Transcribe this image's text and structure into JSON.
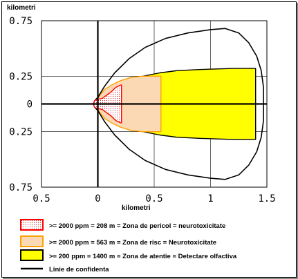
{
  "chart_data": {
    "type": "area",
    "xlabel": "kilometri",
    "ylabel": "kilometri",
    "xlim": [
      -0.5,
      1.5
    ],
    "ylim": [
      -0.75,
      0.75
    ],
    "x_ticks": [
      {
        "value": -0.5,
        "label": "0.5"
      },
      {
        "value": 0,
        "label": "0"
      },
      {
        "value": 0.5,
        "label": "0.5"
      },
      {
        "value": 1,
        "label": "1"
      },
      {
        "value": 1.5,
        "label": "1.5"
      }
    ],
    "y_ticks": [
      {
        "value": 0.75,
        "label": "0.75"
      },
      {
        "value": 0.25,
        "label": "0.25"
      },
      {
        "value": 0,
        "label": "0"
      },
      {
        "value": -0.25,
        "label": "0.25"
      },
      {
        "value": -0.75,
        "label": "0.75"
      }
    ],
    "grid": true,
    "series": [
      {
        "name": ">= 200 ppm = 1400 m = Zona de atentie = Detectare olfactiva",
        "fill": "#ffff00",
        "stroke": "#000000",
        "range_m": 1400,
        "points": [
          [
            -0.03,
            0
          ],
          [
            -0.02,
            0.04
          ],
          [
            0,
            0.06
          ],
          [
            0.05,
            0.1
          ],
          [
            0.1,
            0.13
          ],
          [
            0.2,
            0.18
          ],
          [
            0.3,
            0.22
          ],
          [
            0.4,
            0.25
          ],
          [
            0.55,
            0.28
          ],
          [
            0.7,
            0.3
          ],
          [
            0.9,
            0.31
          ],
          [
            1.2,
            0.32
          ],
          [
            1.4,
            0.32
          ],
          [
            1.4,
            -0.32
          ],
          [
            1.2,
            -0.32
          ],
          [
            0.9,
            -0.31
          ],
          [
            0.7,
            -0.3
          ],
          [
            0.55,
            -0.28
          ],
          [
            0.4,
            -0.25
          ],
          [
            0.3,
            -0.22
          ],
          [
            0.2,
            -0.18
          ],
          [
            0.1,
            -0.13
          ],
          [
            0.05,
            -0.1
          ],
          [
            0,
            -0.06
          ],
          [
            -0.02,
            -0.04
          ]
        ]
      },
      {
        "name": ">= 2000 ppm = 563 m = Zona de risc = Neurotoxicitate",
        "fill": "#fad9b4",
        "stroke": "#ffa000",
        "range_m": 563,
        "points": [
          [
            -0.02,
            0
          ],
          [
            -0.01,
            0.03
          ],
          [
            0.02,
            0.08
          ],
          [
            0.06,
            0.13
          ],
          [
            0.12,
            0.17
          ],
          [
            0.2,
            0.21
          ],
          [
            0.3,
            0.24
          ],
          [
            0.4,
            0.25
          ],
          [
            0.47,
            0.25
          ],
          [
            0.56,
            0.25
          ],
          [
            0.56,
            -0.25
          ],
          [
            0.47,
            -0.25
          ],
          [
            0.4,
            -0.25
          ],
          [
            0.3,
            -0.24
          ],
          [
            0.2,
            -0.21
          ],
          [
            0.12,
            -0.17
          ],
          [
            0.06,
            -0.13
          ],
          [
            0.02,
            -0.08
          ],
          [
            -0.01,
            -0.03
          ]
        ]
      },
      {
        "name": ">= 2000 ppm = 208 m = Zona de pericol = neurotoxicitate",
        "fill": "#ffffff",
        "pattern": "dots",
        "stroke": "#ff0000",
        "range_m": 208,
        "points": [
          [
            -0.04,
            0
          ],
          [
            -0.03,
            0.03
          ],
          [
            -0.01,
            0.04
          ],
          [
            0.04,
            0.05
          ],
          [
            0.08,
            0.08
          ],
          [
            0.12,
            0.11
          ],
          [
            0.16,
            0.15
          ],
          [
            0.2,
            0.17
          ],
          [
            0.21,
            0.17
          ],
          [
            0.21,
            -0.17
          ],
          [
            0.2,
            -0.17
          ],
          [
            0.16,
            -0.15
          ],
          [
            0.12,
            -0.11
          ],
          [
            0.08,
            -0.08
          ],
          [
            0.04,
            -0.05
          ],
          [
            -0.01,
            -0.04
          ],
          [
            -0.03,
            -0.03
          ]
        ]
      },
      {
        "name": "Linie de confidenta",
        "fill": "none",
        "stroke": "#000000",
        "points": [
          [
            0,
            0.06
          ],
          [
            0.06,
            0.16
          ],
          [
            0.15,
            0.28
          ],
          [
            0.28,
            0.41
          ],
          [
            0.42,
            0.51
          ],
          [
            0.6,
            0.59
          ],
          [
            0.8,
            0.64
          ],
          [
            1.0,
            0.67
          ],
          [
            1.13,
            0.68
          ],
          [
            1.25,
            0.64
          ],
          [
            1.34,
            0.55
          ],
          [
            1.41,
            0.43
          ],
          [
            1.45,
            0.3
          ],
          [
            1.47,
            0.15
          ],
          [
            1.47,
            0
          ],
          [
            1.47,
            -0.15
          ],
          [
            1.45,
            -0.3
          ],
          [
            1.41,
            -0.43
          ],
          [
            1.34,
            -0.55
          ],
          [
            1.25,
            -0.64
          ],
          [
            1.13,
            -0.68
          ],
          [
            1.0,
            -0.67
          ],
          [
            0.8,
            -0.64
          ],
          [
            0.6,
            -0.59
          ],
          [
            0.42,
            -0.51
          ],
          [
            0.28,
            -0.41
          ],
          [
            0.15,
            -0.28
          ],
          [
            0.06,
            -0.16
          ],
          [
            0,
            -0.06
          ]
        ]
      }
    ]
  },
  "legend": {
    "items": [
      {
        "label": ">= 2000 ppm = 208 m = Zona de pericol = neurotoxicitate",
        "swatch_fill": "#ffffff",
        "swatch_pattern": "dots",
        "swatch_stroke": "#ff0000",
        "kind": "box"
      },
      {
        "label": ">= 2000 ppm = 563 m = Zona de risc = Neurotoxicitate",
        "swatch_fill": "#fad9b4",
        "swatch_stroke": "#ffa000",
        "kind": "box"
      },
      {
        "label": ">= 200 ppm = 1400 m = Zona de atentie = Detectare olfactiva",
        "swatch_fill": "#ffff00",
        "swatch_stroke": "#000000",
        "kind": "box"
      },
      {
        "label": "Linie de confidenta",
        "swatch_stroke": "#000000",
        "kind": "line"
      }
    ]
  }
}
